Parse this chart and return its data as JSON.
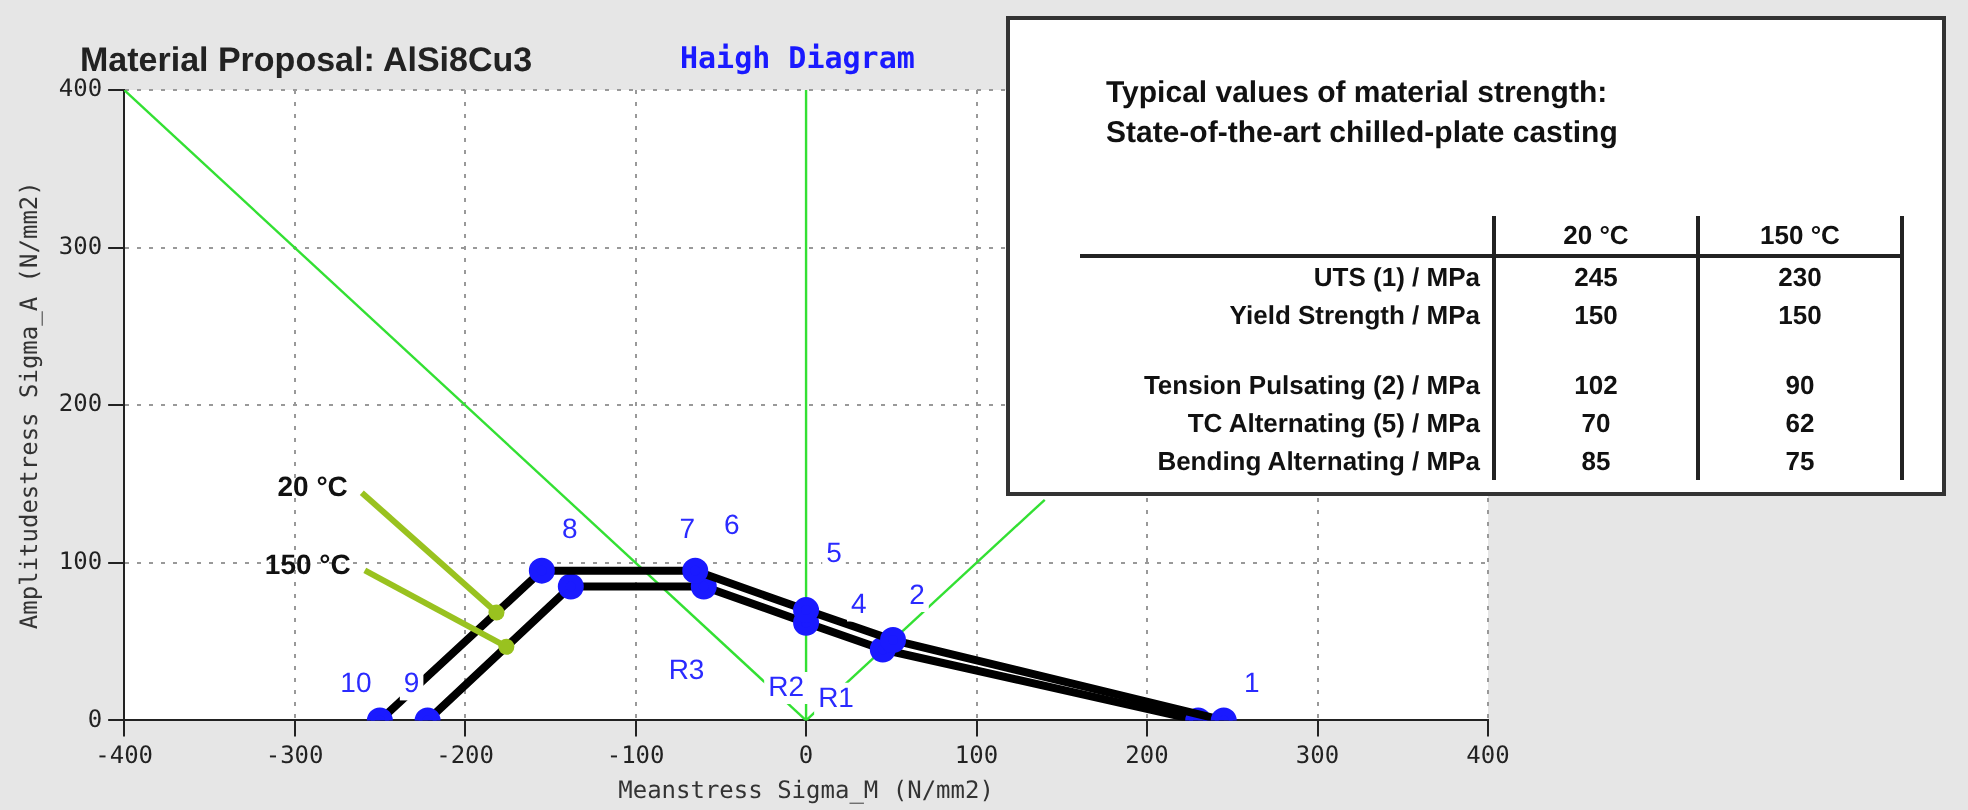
{
  "chart_data": {
    "type": "line",
    "title": "Material Proposal: AlSi8Cu3",
    "subtitle": "Haigh Diagram",
    "xlabel": "Meanstress Sigma_M (N/mm2)",
    "ylabel": "Amplitudestress Sigma_A (N/mm2)",
    "xlim": [
      -400,
      400
    ],
    "xticks": [
      -400,
      -300,
      -200,
      -100,
      0,
      100,
      200,
      300,
      400
    ],
    "ylim": [
      0,
      400
    ],
    "yticks": [
      0,
      100,
      200,
      300,
      400
    ],
    "grid": true,
    "legend": false,
    "marker": "circle",
    "series": [
      {
        "name": "20 °C",
        "color": "#000000",
        "colors": [
          "#1a1aff",
          "#1a1aff",
          "#1a1aff",
          "#1a1aff",
          "#1a1aff",
          "#1a1aff"
        ],
        "x": [
          -250,
          -155,
          -65,
          0,
          51,
          245
        ],
        "values": [
          0,
          95,
          95,
          70,
          51,
          0
        ]
      },
      {
        "name": "150 °C",
        "color": "#000000",
        "colors": [
          "#1a1aff",
          "#1a1aff",
          "#1a1aff",
          "#1a1aff",
          "#1a1aff",
          "#1a1aff"
        ],
        "x": [
          -222,
          -138,
          -60,
          0,
          45,
          230
        ],
        "values": [
          0,
          85,
          85,
          62,
          45,
          0
        ]
      },
      {
        "color": "#33e033",
        "marker": "none",
        "x": [
          -400,
          0
        ],
        "values": [
          400,
          0
        ]
      },
      {
        "color": "#33e033",
        "marker": "none",
        "x": [
          0,
          0
        ],
        "values": [
          0,
          400
        ]
      },
      {
        "color": "#33e033",
        "marker": "none",
        "x": [
          0,
          140
        ],
        "values": [
          0,
          140
        ]
      }
    ],
    "annotations": [
      {
        "text": "10",
        "x": -250,
        "y": 0
      },
      {
        "text": "9",
        "x": -222,
        "y": 0
      },
      {
        "text": "8",
        "x": -155,
        "y": 95
      },
      {
        "text": "7",
        "x": -65,
        "y": 95
      },
      {
        "text": "6",
        "x": -60,
        "y": 85
      },
      {
        "text": "5",
        "x": 0,
        "y": 70
      },
      {
        "text": "4",
        "x": 45,
        "y": 45
      },
      {
        "text": "2",
        "x": 51,
        "y": 51
      },
      {
        "text": "1",
        "x": 245,
        "y": 0
      },
      {
        "text": "R3",
        "x": -49,
        "y": 49
      },
      {
        "text": "R2",
        "x": 0,
        "y": 46
      },
      {
        "text": "R1",
        "x": 34,
        "y": 34
      },
      "Typical values of material strength:",
      "State-of-the-art chilled-plate casting",
      "20 °C",
      "150 °C",
      "UTS (1) / MPa",
      "245",
      "230",
      "Yield Strength / MPa",
      "150",
      "150",
      "Tension Pulsating (2) / MPa",
      "102",
      "90",
      "TC Alternating (5) / MPa",
      "70",
      "62",
      "Bending Alternating / MPa",
      "85",
      "75"
    ]
  }
}
